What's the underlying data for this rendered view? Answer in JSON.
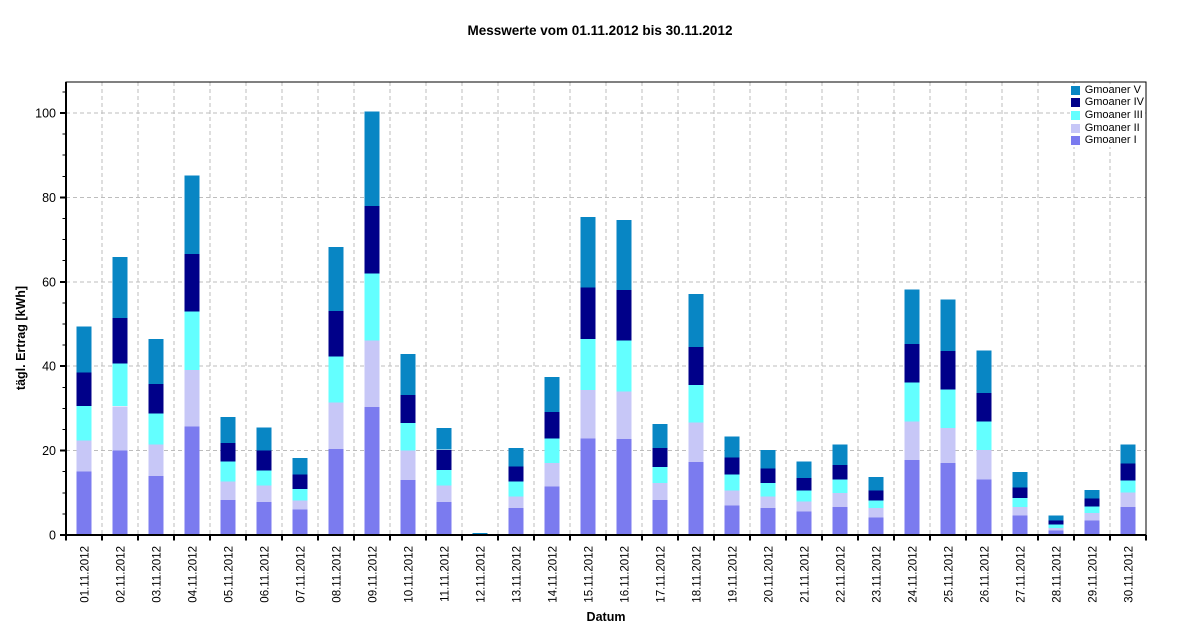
{
  "title": "Messwerte vom 01.11.2012 bis 30.11.2012",
  "chart_data": {
    "type": "bar",
    "stacked": true,
    "xlabel": "Datum",
    "ylabel": "tägl. Ertrag [kWh]",
    "ylim": [
      0,
      107
    ],
    "yticks": [
      0,
      20,
      40,
      60,
      80,
      100
    ],
    "minor_tick_step": 5,
    "grid": "dashed",
    "grid_color": "#BDBDBD",
    "axis_color": "#000000",
    "legend_position": "top-right",
    "legend_order_top_to_bottom": [
      "Gmoaner V",
      "Gmoaner IV",
      "Gmoaner III",
      "Gmoaner II",
      "Gmoaner I"
    ],
    "categories": [
      "01.11.2012",
      "02.11.2012",
      "03.11.2012",
      "04.11.2012",
      "05.11.2012",
      "06.11.2012",
      "07.11.2012",
      "08.11.2012",
      "09.11.2012",
      "10.11.2012",
      "11.11.2012",
      "12.11.2012",
      "13.11.2012",
      "14.11.2012",
      "15.11.2012",
      "16.11.2012",
      "17.11.2012",
      "18.11.2012",
      "19.11.2012",
      "20.11.2012",
      "21.11.2012",
      "22.11.2012",
      "23.11.2012",
      "24.11.2012",
      "25.11.2012",
      "26.11.2012",
      "27.11.2012",
      "28.11.2012",
      "29.11.2012",
      "30.11.2012"
    ],
    "series": [
      {
        "name": "Gmoaner I",
        "color": "#7B7BEF",
        "values": [
          15.0,
          20.0,
          14.0,
          25.7,
          8.3,
          7.8,
          6.0,
          20.4,
          30.3,
          13.0,
          7.8,
          0,
          6.4,
          11.5,
          22.9,
          22.7,
          8.3,
          17.3,
          7.0,
          6.4,
          5.6,
          6.6,
          4.2,
          17.8,
          17.1,
          13.2,
          4.6,
          1.1,
          3.4,
          6.6
        ]
      },
      {
        "name": "Gmoaner II",
        "color": "#C7C7F7",
        "values": [
          7.4,
          10.5,
          7.4,
          13.4,
          4.4,
          3.9,
          2.2,
          11.0,
          15.8,
          7.0,
          3.9,
          0,
          2.7,
          5.6,
          11.5,
          11.3,
          4.0,
          9.4,
          3.5,
          2.7,
          2.3,
          3.3,
          2.2,
          9.1,
          8.2,
          6.9,
          2.0,
          0.6,
          1.8,
          3.5
        ]
      },
      {
        "name": "Gmoaner III",
        "color": "#63FFFF",
        "values": [
          8.2,
          10.2,
          7.4,
          13.9,
          4.7,
          3.6,
          2.7,
          10.9,
          15.9,
          6.5,
          3.7,
          0,
          3.6,
          5.8,
          12.0,
          12.1,
          3.8,
          8.8,
          3.8,
          3.2,
          2.6,
          3.2,
          1.8,
          9.2,
          9.2,
          6.8,
          2.2,
          0.8,
          1.6,
          2.8
        ]
      },
      {
        "name": "Gmoaner IV",
        "color": "#000089",
        "values": [
          7.9,
          10.7,
          7.0,
          13.6,
          4.4,
          4.7,
          3.4,
          10.8,
          16.0,
          6.7,
          4.8,
          0,
          3.5,
          6.2,
          12.3,
          12.0,
          4.5,
          9.1,
          4.1,
          3.5,
          3.0,
          3.5,
          2.3,
          9.2,
          9.1,
          6.8,
          2.5,
          0.9,
          1.8,
          4.0
        ]
      },
      {
        "name": "Gmoaner V",
        "color": "#0886C4",
        "values": [
          10.9,
          14.5,
          10.6,
          18.6,
          6.2,
          5.5,
          3.9,
          15.2,
          22.3,
          9.7,
          5.2,
          0.5,
          4.4,
          8.3,
          16.6,
          16.5,
          5.7,
          12.5,
          4.9,
          4.4,
          3.9,
          4.8,
          3.2,
          12.9,
          12.2,
          10.0,
          3.6,
          1.2,
          2.1,
          4.5
        ]
      }
    ]
  }
}
